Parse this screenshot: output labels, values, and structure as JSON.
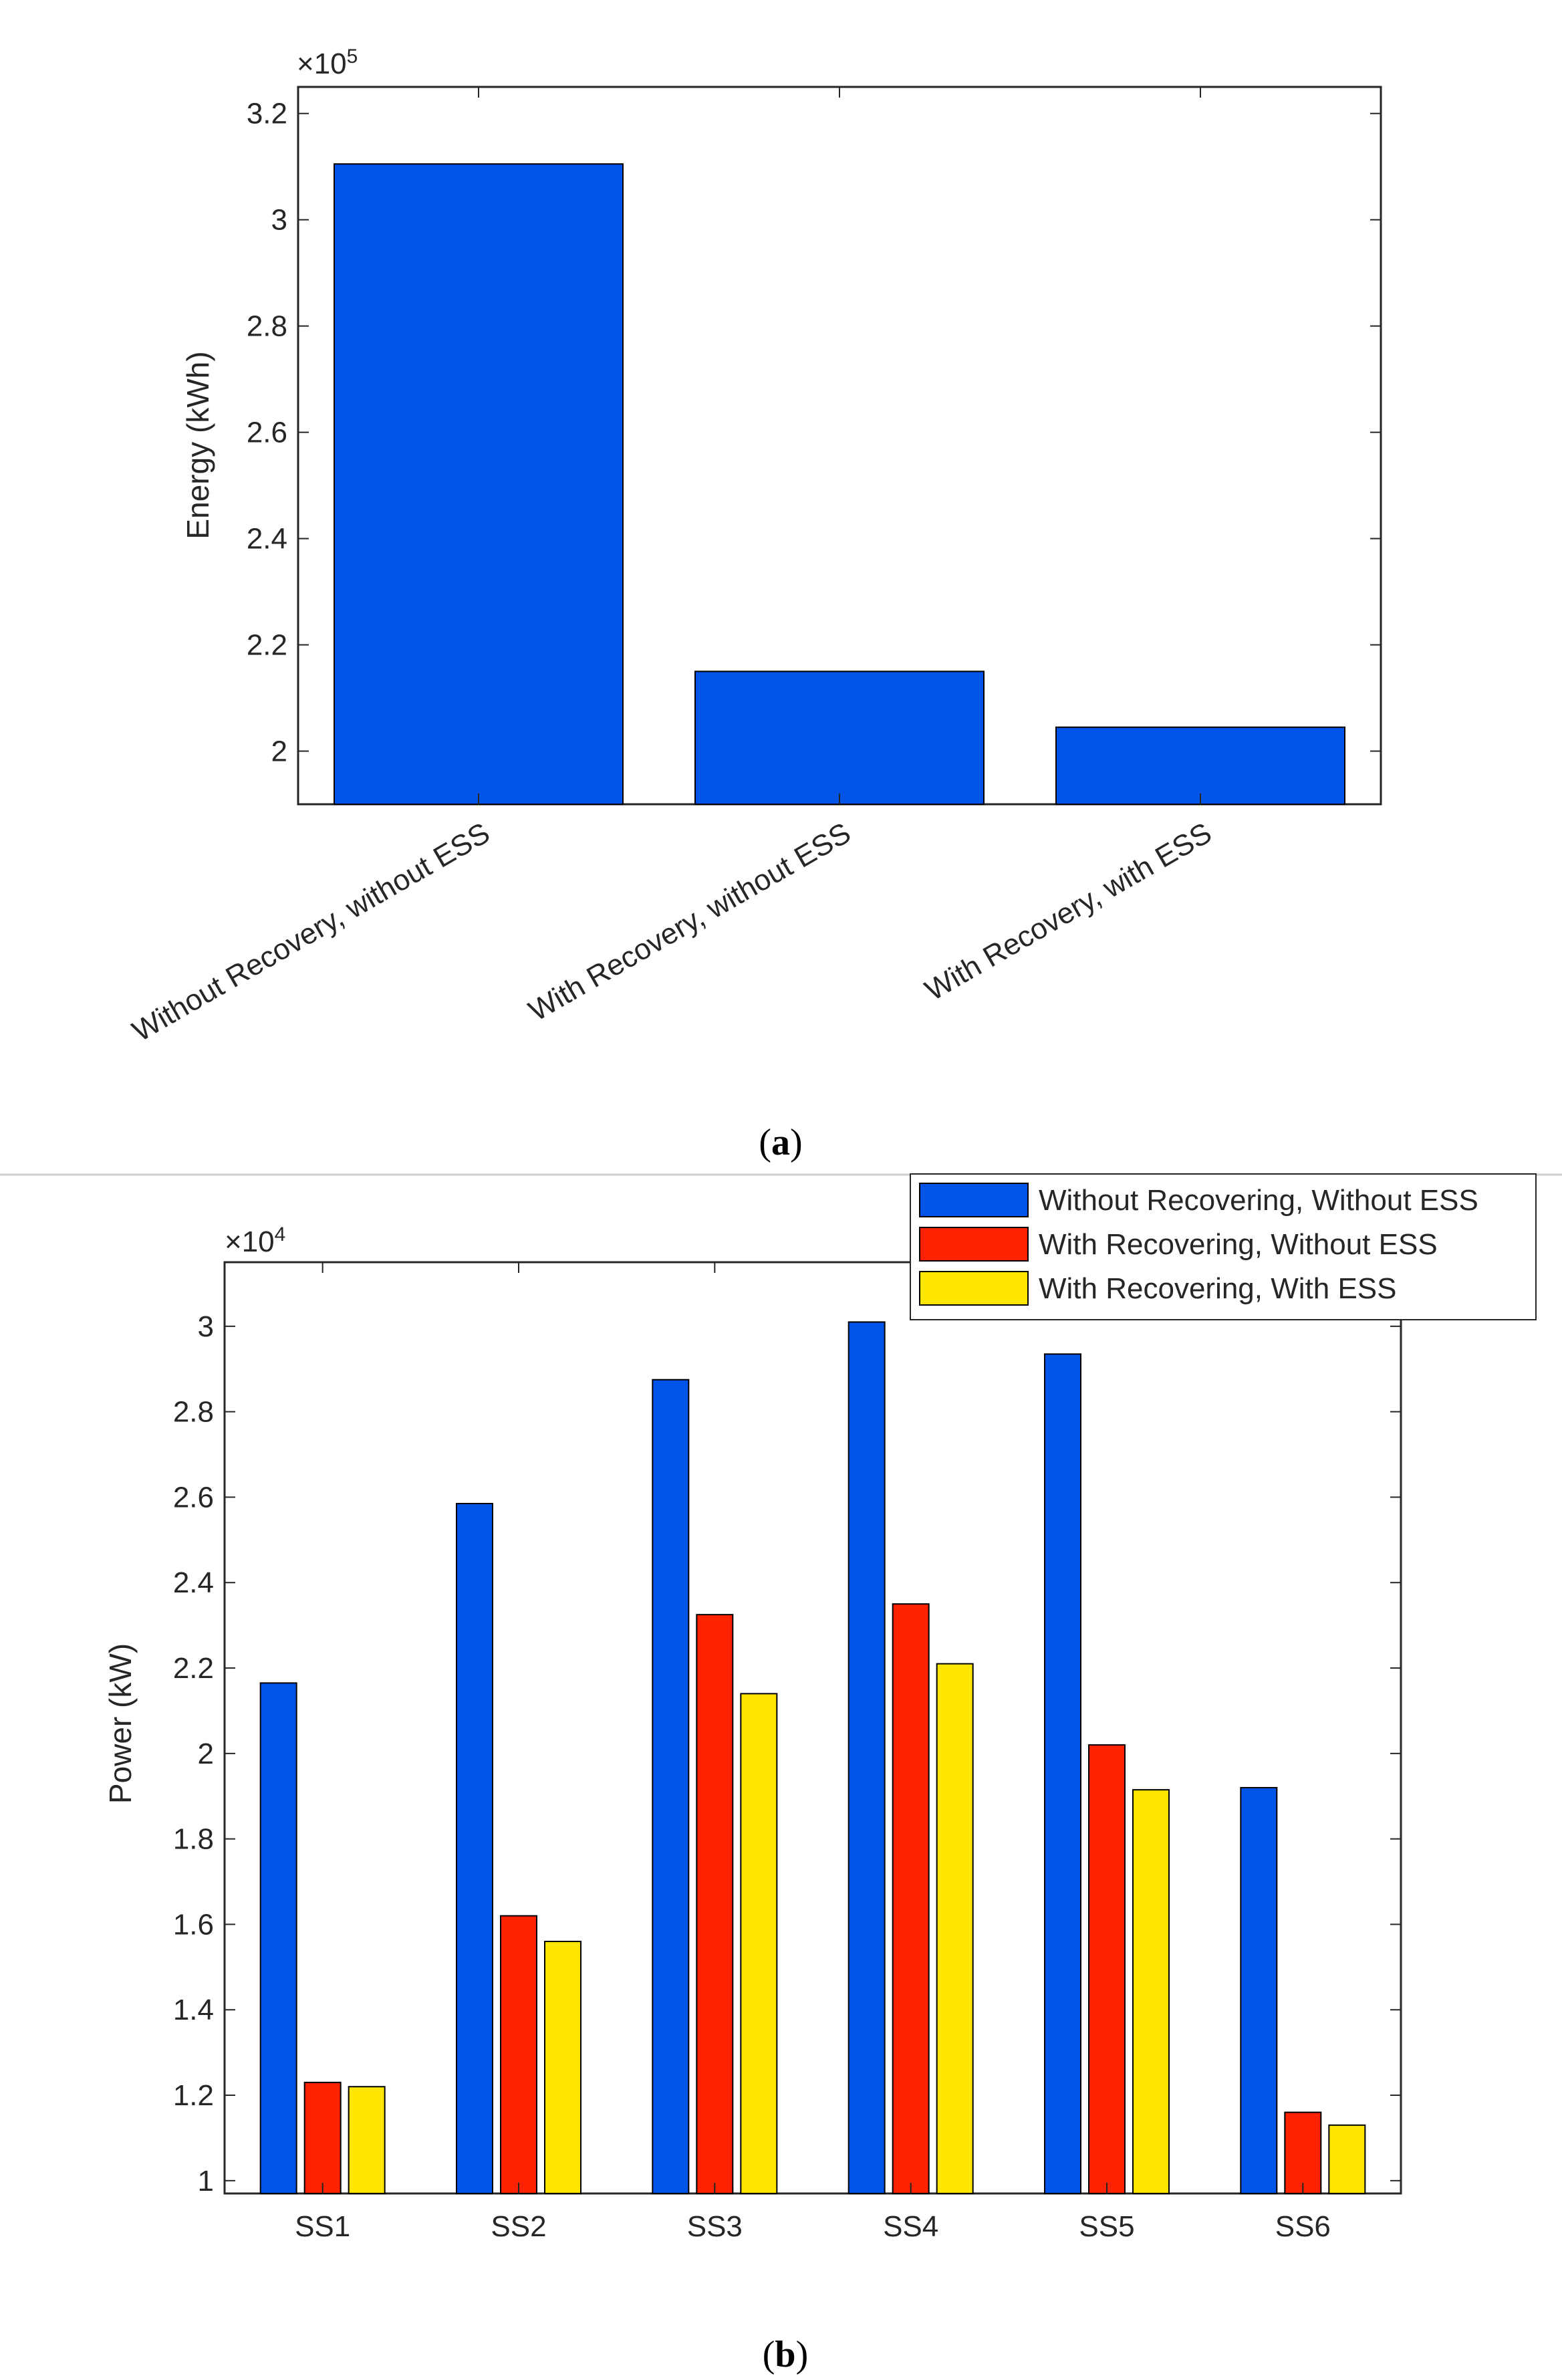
{
  "chart_data": [
    {
      "type": "bar",
      "panel_label": "a",
      "title": "",
      "xlabel": "",
      "ylabel": "Energy (kWh)",
      "exponent_label": "×10",
      "exponent_power": "5",
      "categories": [
        "Without Recovery, without ESS",
        "With Recovery, without ESS",
        "With Recovery, with ESS"
      ],
      "values": [
        3.105,
        2.15,
        2.045
      ],
      "ylim": [
        1.9,
        3.25
      ],
      "yticks": [
        2,
        2.2,
        2.4,
        2.6,
        2.8,
        3,
        3.2
      ],
      "ytick_labels": [
        "2",
        "2.2",
        "2.4",
        "2.6",
        "2.8",
        "3",
        "3.2"
      ],
      "colors": [
        "#0055e8"
      ],
      "grid": false
    },
    {
      "type": "bar",
      "panel_label": "b",
      "title": "",
      "xlabel": "",
      "ylabel": "Power (kW)",
      "exponent_label": "×10",
      "exponent_power": "4",
      "categories": [
        "SS1",
        "SS2",
        "SS3",
        "SS4",
        "SS5",
        "SS6"
      ],
      "series": [
        {
          "name": "Without Recovering, Without ESS",
          "color": "#0055e8",
          "values": [
            2.165,
            2.585,
            2.875,
            3.01,
            2.935,
            1.92
          ]
        },
        {
          "name": "With Recovering, Without ESS",
          "color": "#ff2200",
          "values": [
            1.23,
            1.62,
            2.325,
            2.35,
            2.02,
            1.16
          ]
        },
        {
          "name": "With Recovering, With ESS",
          "color": "#ffe600",
          "values": [
            1.22,
            1.56,
            2.14,
            2.21,
            1.915,
            1.13
          ]
        }
      ],
      "ylim": [
        0.97,
        3.15
      ],
      "yticks": [
        1,
        1.2,
        1.4,
        1.6,
        1.8,
        2,
        2.2,
        2.4,
        2.6,
        2.8,
        3
      ],
      "ytick_labels": [
        "1",
        "1.2",
        "1.4",
        "1.6",
        "1.8",
        "2",
        "2.2",
        "2.4",
        "2.6",
        "2.8",
        "3"
      ],
      "legend_position": "top-right",
      "grid": false
    }
  ]
}
